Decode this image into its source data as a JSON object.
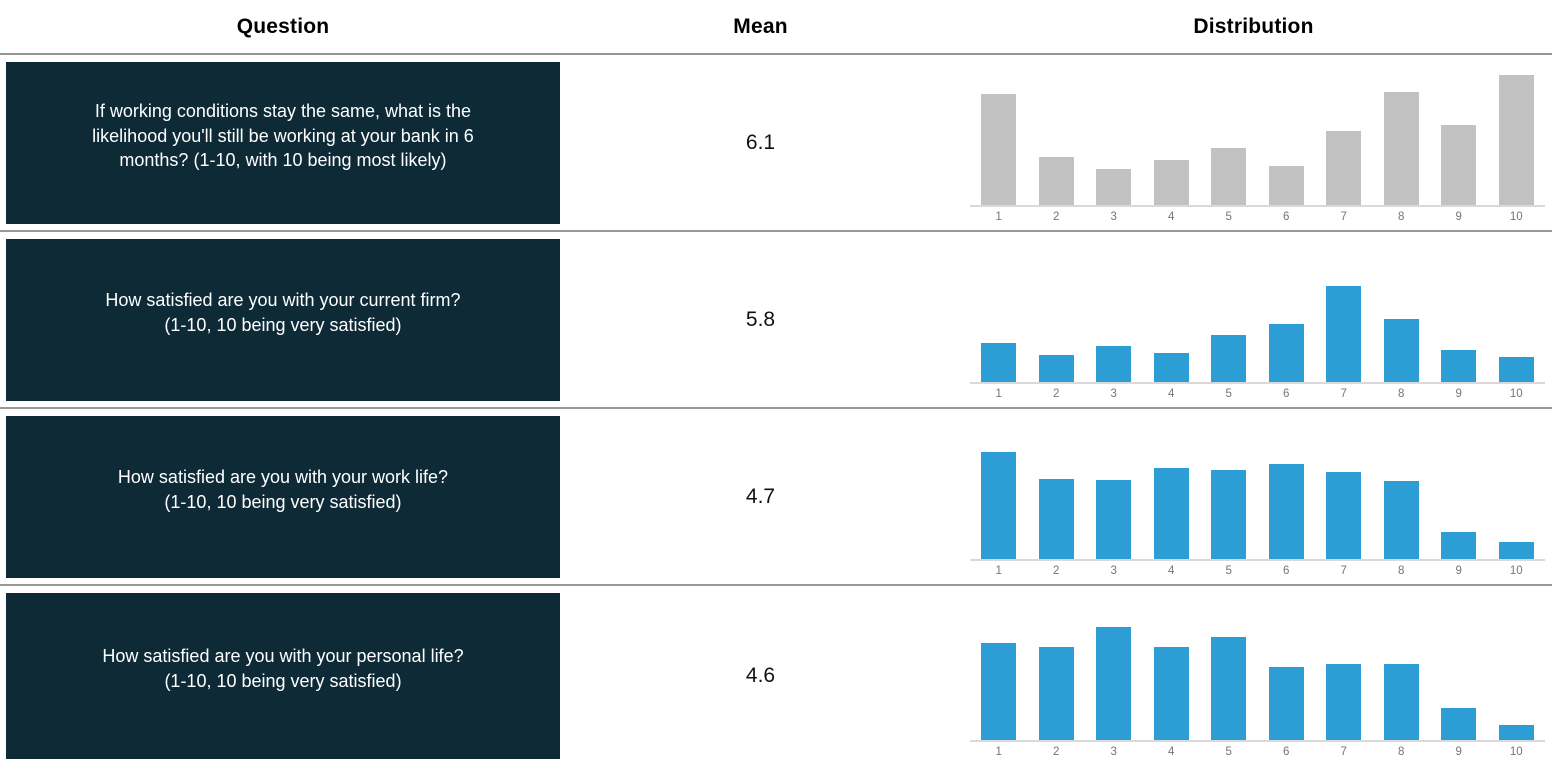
{
  "header": {
    "question_label": "Question",
    "mean_label": "Mean",
    "distribution_label": "Distribution"
  },
  "colors": {
    "question_box_bg": "#0d2a36",
    "question_text": "#ffffff",
    "bar_gray": "#c2c2c2",
    "bar_blue": "#2d9dd6",
    "row_separator": "#989898",
    "axis_line": "#d9d9d9",
    "tick_label": "#757575"
  },
  "rows": [
    {
      "question": "If working conditions stay the same, what is the\nlikelihood you'll still be working at your bank in 6\nmonths? (1-10, with 10 being most likely)",
      "mean": "6.1"
    },
    {
      "question": "How satisfied are you with your current firm?\n(1-10, 10 being very satisfied)",
      "mean": "5.8"
    },
    {
      "question": "How satisfied are you with your work life?\n(1-10, 10 being very satisfied)",
      "mean": "4.7"
    },
    {
      "question": "How satisfied are you with your personal life?\n(1-10, 10 being very satisfied)",
      "mean": "4.6"
    }
  ],
  "chart_data": [
    {
      "type": "bar",
      "title": "If working conditions stay the same, what is the likelihood you'll still be working at your bank in 6 months? (1-10, with 10 being most likely)",
      "mean": 6.1,
      "categories": [
        "1",
        "2",
        "3",
        "4",
        "5",
        "6",
        "7",
        "8",
        "9",
        "10"
      ],
      "values": [
        15.2,
        6.6,
        4.9,
        6.1,
        7.8,
        5.3,
        10.1,
        15.5,
        10.9,
        17.8
      ],
      "xlabel": "",
      "ylabel": "",
      "ylim": [
        0,
        18.5
      ],
      "grid": false,
      "legend": false,
      "bar_color": "#c2c2c2"
    },
    {
      "type": "bar",
      "title": "How satisfied are you with your current firm? (1-10, 10 being very satisfied)",
      "mean": 5.8,
      "categories": [
        "1",
        "2",
        "3",
        "4",
        "5",
        "6",
        "7",
        "8",
        "9",
        "10"
      ],
      "values": [
        8.7,
        6.0,
        8.0,
        6.4,
        10.5,
        12.9,
        21.3,
        14.1,
        7.1,
        5.5
      ],
      "xlabel": "",
      "ylabel": "",
      "ylim": [
        0,
        30
      ],
      "grid": false,
      "legend": false,
      "bar_color": "#2d9dd6"
    },
    {
      "type": "bar",
      "title": "How satisfied are you with your work life? (1-10, 10 being very satisfied)",
      "mean": 4.7,
      "categories": [
        "1",
        "2",
        "3",
        "4",
        "5",
        "6",
        "7",
        "8",
        "9",
        "10"
      ],
      "values": [
        14.3,
        10.7,
        10.5,
        12.1,
        11.8,
        12.6,
        11.6,
        10.4,
        3.6,
        2.3
      ],
      "xlabel": "",
      "ylabel": "",
      "ylim": [
        0,
        18
      ],
      "grid": false,
      "legend": false,
      "bar_color": "#2d9dd6"
    },
    {
      "type": "bar",
      "title": "How satisfied are you with your personal life? (1-10, 10 being very satisfied)",
      "mean": 4.6,
      "categories": [
        "1",
        "2",
        "3",
        "4",
        "5",
        "6",
        "7",
        "8",
        "9",
        "10"
      ],
      "values": [
        12.6,
        12.0,
        14.7,
        12.0,
        13.3,
        9.5,
        9.9,
        9.9,
        4.2,
        2.0
      ],
      "xlabel": "",
      "ylabel": "",
      "ylim": [
        0,
        17.5
      ],
      "grid": false,
      "legend": false,
      "bar_color": "#2d9dd6"
    }
  ]
}
